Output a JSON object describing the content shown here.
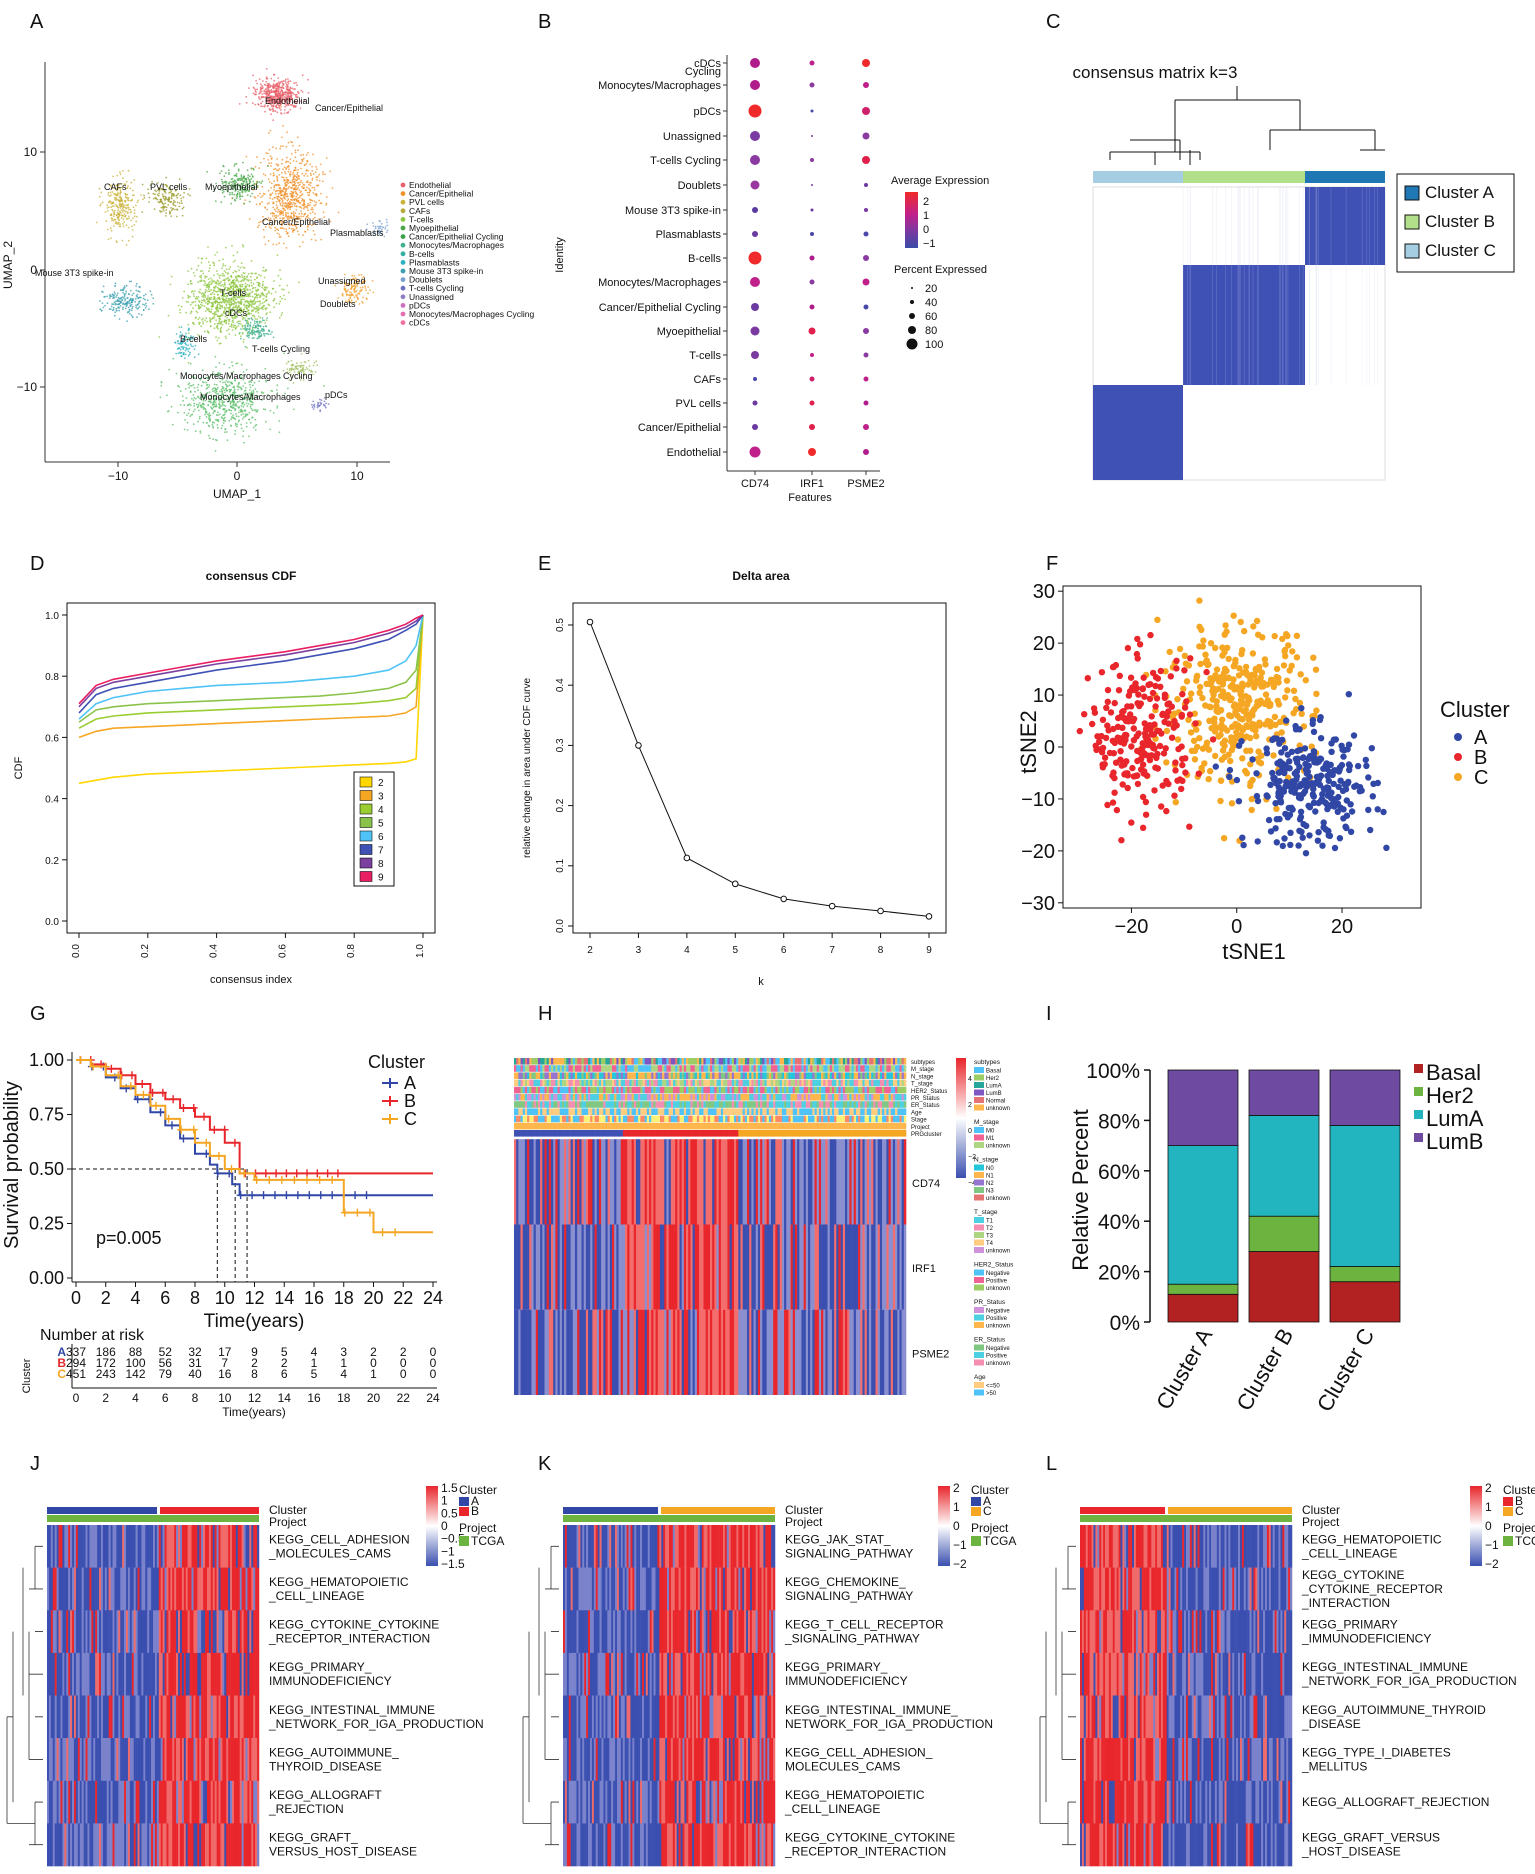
{
  "panel_letters": [
    "A",
    "B",
    "C",
    "D",
    "E",
    "F",
    "G",
    "H",
    "I",
    "J",
    "K",
    "L"
  ],
  "colors": {
    "red": "#e8262b",
    "blue": "#3147a5",
    "orange": "#f5a623",
    "green": "#6cb33f",
    "teal": "#22b5bf",
    "purple": "#6e4aa0",
    "darkred": "#b22222"
  },
  "panelA": {
    "xlabel": "UMAP_1",
    "ylabel": "UMAP_2",
    "xticks": [
      "−10",
      "0",
      "10"
    ],
    "yticks": [
      "10",
      "0",
      "−10"
    ],
    "labels": [
      "Endothelial",
      "Cancer/Epithelial",
      "CAFs",
      "PVL cells",
      "Myoepithelial",
      "Cancer/Epithelial",
      "Plasmablasts",
      "Mouse 3T3 spike-in",
      "T-cells",
      "cDCs",
      "Unassigned",
      "Doublets",
      "B-cells",
      "T-cells Cycling",
      "Monocytes/Macrophages Cycling",
      "Monocytes/Macrophages",
      "pDCs"
    ],
    "legend": [
      "Endothelial",
      "Cancer/Epithelial",
      "PVL cells",
      "CAFs",
      "T-cells",
      "Myoepithelial",
      "Cancer/Epithelial Cycling",
      "Monocytes/Macrophages",
      "B-cells",
      "Plasmablasts",
      "Mouse 3T3 spike-in",
      "Doublets",
      "T-cells Cycling",
      "Unassigned",
      "pDCs",
      "Monocytes/Macrophages Cycling",
      "cDCs"
    ]
  },
  "panelB": {
    "ylabel": "Identity",
    "xlabel": "Features",
    "features": [
      "CD74",
      "IRF1",
      "PSME2"
    ],
    "identities": [
      "cDCs",
      "Cycling Monocytes/Macrophages",
      "pDCs",
      "Unassigned",
      "T-cells Cycling",
      "Doublets",
      "Mouse 3T3 spike-in",
      "Plasmablasts",
      "B-cells",
      "Monocytes/Macrophages",
      "Cancer/Epithelial Cycling",
      "Myoepithelial",
      "T-cells",
      "CAFs",
      "PVL cells",
      "Cancer/Epithelial",
      "Endothelial"
    ],
    "legend_expr_title": "Average Expression",
    "legend_expr_ticks": [
      "2",
      "1",
      "0",
      "−1"
    ],
    "legend_pct_title": "Percent Expressed",
    "legend_pct_ticks": [
      "20",
      "40",
      "60",
      "80",
      "100"
    ]
  },
  "panelC": {
    "title": "consensus matrix k=3",
    "legend": [
      "Cluster A",
      "Cluster B",
      "Cluster C"
    ]
  },
  "panelD": {
    "title": "consensus CDF",
    "xlabel": "consensus index",
    "ylabel": "CDF",
    "legend": [
      "2",
      "3",
      "4",
      "5",
      "6",
      "7",
      "8",
      "9"
    ]
  },
  "panelE": {
    "title": "Delta area",
    "xlabel": "k",
    "ylabel": "relative change in area under CDF curve"
  },
  "panelF": {
    "xlabel": "tSNE1",
    "ylabel": "tSNE2",
    "legend_title": "Cluster",
    "legend": [
      "A",
      "B",
      "C"
    ]
  },
  "panelG": {
    "legend_title": "Cluster",
    "legend": [
      "A",
      "B",
      "C"
    ],
    "ylabel": "Survival probability",
    "xlabel": "Time(years)",
    "pvalue": "p=0.005",
    "risk_title": "Number at risk",
    "risk_ylabel": "Cluster",
    "risk_xlabel": "Time(years)",
    "risk_rows": [
      [
        "337",
        "186",
        "88",
        "52",
        "32",
        "17",
        "9",
        "5",
        "4",
        "3",
        "2",
        "2",
        "0"
      ],
      [
        "294",
        "172",
        "100",
        "56",
        "31",
        "7",
        "2",
        "2",
        "1",
        "1",
        "0",
        "0",
        "0"
      ],
      [
        "451",
        "243",
        "142",
        "79",
        "40",
        "16",
        "8",
        "6",
        "5",
        "4",
        "1",
        "0",
        "0"
      ]
    ],
    "xticks": [
      "0",
      "2",
      "4",
      "6",
      "8",
      "10",
      "12",
      "14",
      "16",
      "18",
      "20",
      "22",
      "24"
    ],
    "yticks": [
      "1.00",
      "0.75",
      "0.50",
      "0.25",
      "0.00"
    ]
  },
  "panelH": {
    "annot_rows": [
      "subtypes",
      "M_stage",
      "N_stage",
      "T_stage",
      "HER2_Status",
      "PR_Status",
      "ER_Status",
      "Age",
      "Stage",
      "Project",
      "PRGcluster"
    ],
    "genes": [
      "CD74",
      "IRF1",
      "PSME2"
    ],
    "legend_groups": [
      {
        "title": "subtypes",
        "items": [
          "Basal",
          "Her2",
          "LumA",
          "LumB",
          "Normal",
          "unknown"
        ]
      },
      {
        "title": "M_stage",
        "items": [
          "M0",
          "M1",
          "unknown"
        ]
      },
      {
        "title": "N_stage",
        "items": [
          "N0",
          "N1",
          "N2",
          "N3",
          "unknown"
        ]
      },
      {
        "title": "T_stage",
        "items": [
          "T1",
          "T2",
          "T3",
          "T4",
          "unknown"
        ]
      },
      {
        "title": "HER2_Status",
        "items": [
          "Negative",
          "Positive",
          "unknown"
        ]
      },
      {
        "title": "PR_Status",
        "items": [
          "Negative",
          "Positive",
          "unknown"
        ]
      },
      {
        "title": "ER_Status",
        "items": [
          "Negative",
          "Positive",
          "unknown"
        ]
      },
      {
        "title": "Age",
        "items": [
          "<=50",
          ">50"
        ]
      }
    ],
    "scale_ticks": [
      "4",
      "2",
      "0",
      "−2",
      "−4"
    ]
  },
  "panelI": {
    "ylabel": "Relative Percent",
    "yticks": [
      "100%",
      "80%",
      "60%",
      "40%",
      "20%",
      "0%"
    ],
    "legend": [
      "Basal",
      "Her2",
      "LumA",
      "LumB"
    ]
  },
  "panelJ": {
    "annot": [
      "Cluster",
      "Project"
    ],
    "pathways": [
      "KEGG_CELL_ADHESION\n_MOLECULES_CAMS",
      "KEGG_HEMATOPOIETIC\n_CELL_LINEAGE",
      "KEGG_CYTOKINE_CYTOKINE\n_RECEPTOR_INTERACTION",
      "KEGG_PRIMARY_\nIMMUNODEFICIENCY",
      "KEGG_INTESTINAL_IMMUNE\n_NETWORK_FOR_IGA_PRODUCTION",
      "KEGG_AUTOIMMUNE_\nTHYROID_DISEASE",
      "KEGG_ALLOGRAFT\n_REJECTION",
      "KEGG_GRAFT_\nVERSUS_HOST_DISEASE"
    ],
    "scale_ticks": [
      "1.5",
      "1",
      "0.5",
      "0",
      "−0.5",
      "−1",
      "−1.5"
    ],
    "legend_cluster_title": "Cluster",
    "legend_cluster": [
      "A",
      "B"
    ],
    "legend_project_title": "Project",
    "legend_project": [
      "TCGA"
    ]
  },
  "panelK": {
    "annot": [
      "Cluster",
      "Project"
    ],
    "pathways": [
      "KEGG_JAK_STAT_\nSIGNALING_PATHWAY",
      "KEGG_CHEMOKINE_\nSIGNALING_PATHWAY",
      "KEGG_T_CELL_RECEPTOR\n_SIGNALING_PATHWAY",
      "KEGG_PRIMARY_\nIMMUNODEFICIENCY",
      "KEGG_INTESTINAL_IMMUNE_\nNETWORK_FOR_IGA_PRODUCTION",
      "KEGG_CELL_ADHESION_\nMOLECULES_CAMS",
      "KEGG_HEMATOPOIETIC\n_CELL_LINEAGE",
      "KEGG_CYTOKINE_CYTOKINE\n_RECEPTOR_INTERACTION"
    ],
    "scale_ticks": [
      "2",
      "1",
      "0",
      "−1",
      "−2"
    ],
    "legend_cluster_title": "Cluster",
    "legend_cluster": [
      "A",
      "C"
    ],
    "legend_project_title": "Project",
    "legend_project": [
      "TCGA"
    ]
  },
  "panelL": {
    "annot": [
      "Cluster",
      "Project"
    ],
    "pathways": [
      "KEGG_HEMATOPOIETIC\n_CELL_LINEAGE",
      "KEGG_CYTOKINE\n_CYTOKINE_RECEPTOR\n_INTERACTION",
      "KEGG_PRIMARY\n_IMMUNODEFICIENCY",
      "KEGG_INTESTINAL_IMMUNE\n_NETWORK_FOR_IGA_PRODUCTION",
      "KEGG_AUTOIMMUNE_THYROID\n_DISEASE",
      "KEGG_TYPE_I_DIABETES\n_MELLITUS",
      "KEGG_ALLOGRAFT_REJECTION",
      "KEGG_GRAFT_VERSUS\n_HOST_DISEASE"
    ],
    "scale_ticks": [
      "2",
      "1",
      "0",
      "−1",
      "−2"
    ],
    "legend_cluster_title": "Cluster",
    "legend_cluster": [
      "B",
      "C"
    ],
    "legend_project_title": "Project",
    "legend_project": [
      "TCGA"
    ]
  },
  "chart_data": [
    {
      "panel": "D",
      "type": "line",
      "title": "consensus CDF",
      "xlabel": "consensus index",
      "ylabel": "CDF",
      "xlim": [
        0,
        1
      ],
      "ylim": [
        0,
        1
      ],
      "x": [
        0.0,
        0.05,
        0.1,
        0.2,
        0.3,
        0.4,
        0.5,
        0.6,
        0.7,
        0.8,
        0.9,
        0.95,
        0.98,
        1.0
      ],
      "series": [
        {
          "name": "2",
          "values": [
            0.45,
            0.46,
            0.47,
            0.48,
            0.485,
            0.49,
            0.495,
            0.5,
            0.505,
            0.51,
            0.515,
            0.52,
            0.53,
            1.0
          ]
        },
        {
          "name": "3",
          "values": [
            0.6,
            0.62,
            0.63,
            0.635,
            0.64,
            0.645,
            0.65,
            0.655,
            0.66,
            0.665,
            0.67,
            0.68,
            0.7,
            1.0
          ]
        },
        {
          "name": "4",
          "values": [
            0.63,
            0.66,
            0.67,
            0.68,
            0.685,
            0.69,
            0.695,
            0.7,
            0.705,
            0.71,
            0.72,
            0.73,
            0.76,
            1.0
          ]
        },
        {
          "name": "5",
          "values": [
            0.65,
            0.69,
            0.7,
            0.71,
            0.715,
            0.72,
            0.725,
            0.73,
            0.735,
            0.745,
            0.76,
            0.78,
            0.82,
            1.0
          ]
        },
        {
          "name": "6",
          "values": [
            0.66,
            0.71,
            0.73,
            0.75,
            0.76,
            0.77,
            0.775,
            0.78,
            0.79,
            0.8,
            0.82,
            0.85,
            0.9,
            1.0
          ]
        },
        {
          "name": "7",
          "values": [
            0.68,
            0.74,
            0.76,
            0.78,
            0.8,
            0.82,
            0.835,
            0.85,
            0.87,
            0.89,
            0.92,
            0.95,
            0.97,
            1.0
          ]
        },
        {
          "name": "8",
          "values": [
            0.7,
            0.76,
            0.78,
            0.8,
            0.82,
            0.84,
            0.855,
            0.87,
            0.89,
            0.91,
            0.94,
            0.96,
            0.98,
            1.0
          ]
        },
        {
          "name": "9",
          "values": [
            0.71,
            0.77,
            0.79,
            0.81,
            0.83,
            0.85,
            0.865,
            0.88,
            0.9,
            0.92,
            0.95,
            0.97,
            0.99,
            1.0
          ]
        }
      ]
    },
    {
      "panel": "E",
      "type": "line",
      "title": "Delta area",
      "xlabel": "k",
      "ylabel": "relative change in area under CDF curve",
      "x": [
        2,
        3,
        4,
        5,
        6,
        7,
        8,
        9
      ],
      "values": [
        0.505,
        0.3,
        0.113,
        0.07,
        0.045,
        0.033,
        0.025,
        0.016
      ],
      "xlim": [
        2,
        9
      ],
      "ylim": [
        0,
        0.5
      ],
      "yticks": [
        0.0,
        0.1,
        0.2,
        0.3,
        0.4,
        0.5
      ]
    },
    {
      "panel": "F",
      "type": "scatter",
      "xlabel": "tSNE1",
      "ylabel": "tSNE2",
      "xlim": [
        -33,
        35
      ],
      "ylim": [
        -31,
        31
      ],
      "xticks": [
        -20,
        0,
        20
      ],
      "yticks": [
        30,
        20,
        10,
        0,
        -10,
        -20,
        -30
      ],
      "series": [
        {
          "name": "A",
          "center": [
            14,
            -8
          ],
          "spread": [
            11,
            10
          ]
        },
        {
          "name": "B",
          "center": [
            -18,
            2
          ],
          "spread": [
            9,
            13
          ]
        },
        {
          "name": "C",
          "center": [
            0,
            8
          ],
          "spread": [
            13,
            14
          ]
        }
      ]
    },
    {
      "panel": "G",
      "type": "line",
      "xlabel": "Time(years)",
      "ylabel": "Survival probability",
      "xlim": [
        0,
        24
      ],
      "ylim": [
        0,
        1
      ],
      "series": [
        {
          "name": "A",
          "t": [
            0,
            1,
            2,
            3,
            4,
            5,
            6,
            7,
            8,
            9,
            9.5,
            10.5,
            11,
            12,
            14,
            16,
            18,
            20,
            22,
            24
          ],
          "s": [
            1.0,
            0.97,
            0.92,
            0.87,
            0.82,
            0.76,
            0.7,
            0.64,
            0.57,
            0.52,
            0.48,
            0.43,
            0.38,
            0.38,
            0.38,
            0.38,
            0.38,
            0.38,
            0.38,
            0.38
          ]
        },
        {
          "name": "B",
          "t": [
            0,
            1,
            2,
            3,
            4,
            5,
            6,
            7,
            8,
            9,
            10,
            11,
            12,
            14,
            16,
            18,
            20,
            22,
            24
          ],
          "s": [
            1.0,
            0.98,
            0.96,
            0.93,
            0.89,
            0.85,
            0.82,
            0.78,
            0.74,
            0.68,
            0.62,
            0.48,
            0.48,
            0.48,
            0.48,
            0.48,
            0.48,
            0.48,
            0.48
          ]
        },
        {
          "name": "C",
          "t": [
            0,
            1,
            2,
            3,
            4,
            5,
            6,
            7,
            8,
            9,
            10,
            11,
            12,
            14,
            16,
            17.5,
            18,
            20,
            22,
            24
          ],
          "s": [
            1.0,
            0.97,
            0.93,
            0.88,
            0.84,
            0.79,
            0.73,
            0.68,
            0.62,
            0.56,
            0.5,
            0.48,
            0.45,
            0.45,
            0.45,
            0.45,
            0.3,
            0.21,
            0.21,
            0.21
          ]
        }
      ],
      "median_lines": [
        9.5,
        10.7,
        11.5
      ]
    },
    {
      "panel": "I",
      "type": "bar",
      "ylabel": "Relative Percent",
      "categories": [
        "Cluster A",
        "Cluster B",
        "Cluster C"
      ],
      "series": [
        {
          "name": "Basal",
          "values": [
            0.11,
            0.28,
            0.16
          ]
        },
        {
          "name": "Her2",
          "values": [
            0.04,
            0.14,
            0.06
          ]
        },
        {
          "name": "LumA",
          "values": [
            0.55,
            0.4,
            0.56
          ]
        },
        {
          "name": "LumB",
          "values": [
            0.3,
            0.18,
            0.22
          ]
        }
      ],
      "ylim": [
        0,
        1
      ]
    }
  ]
}
